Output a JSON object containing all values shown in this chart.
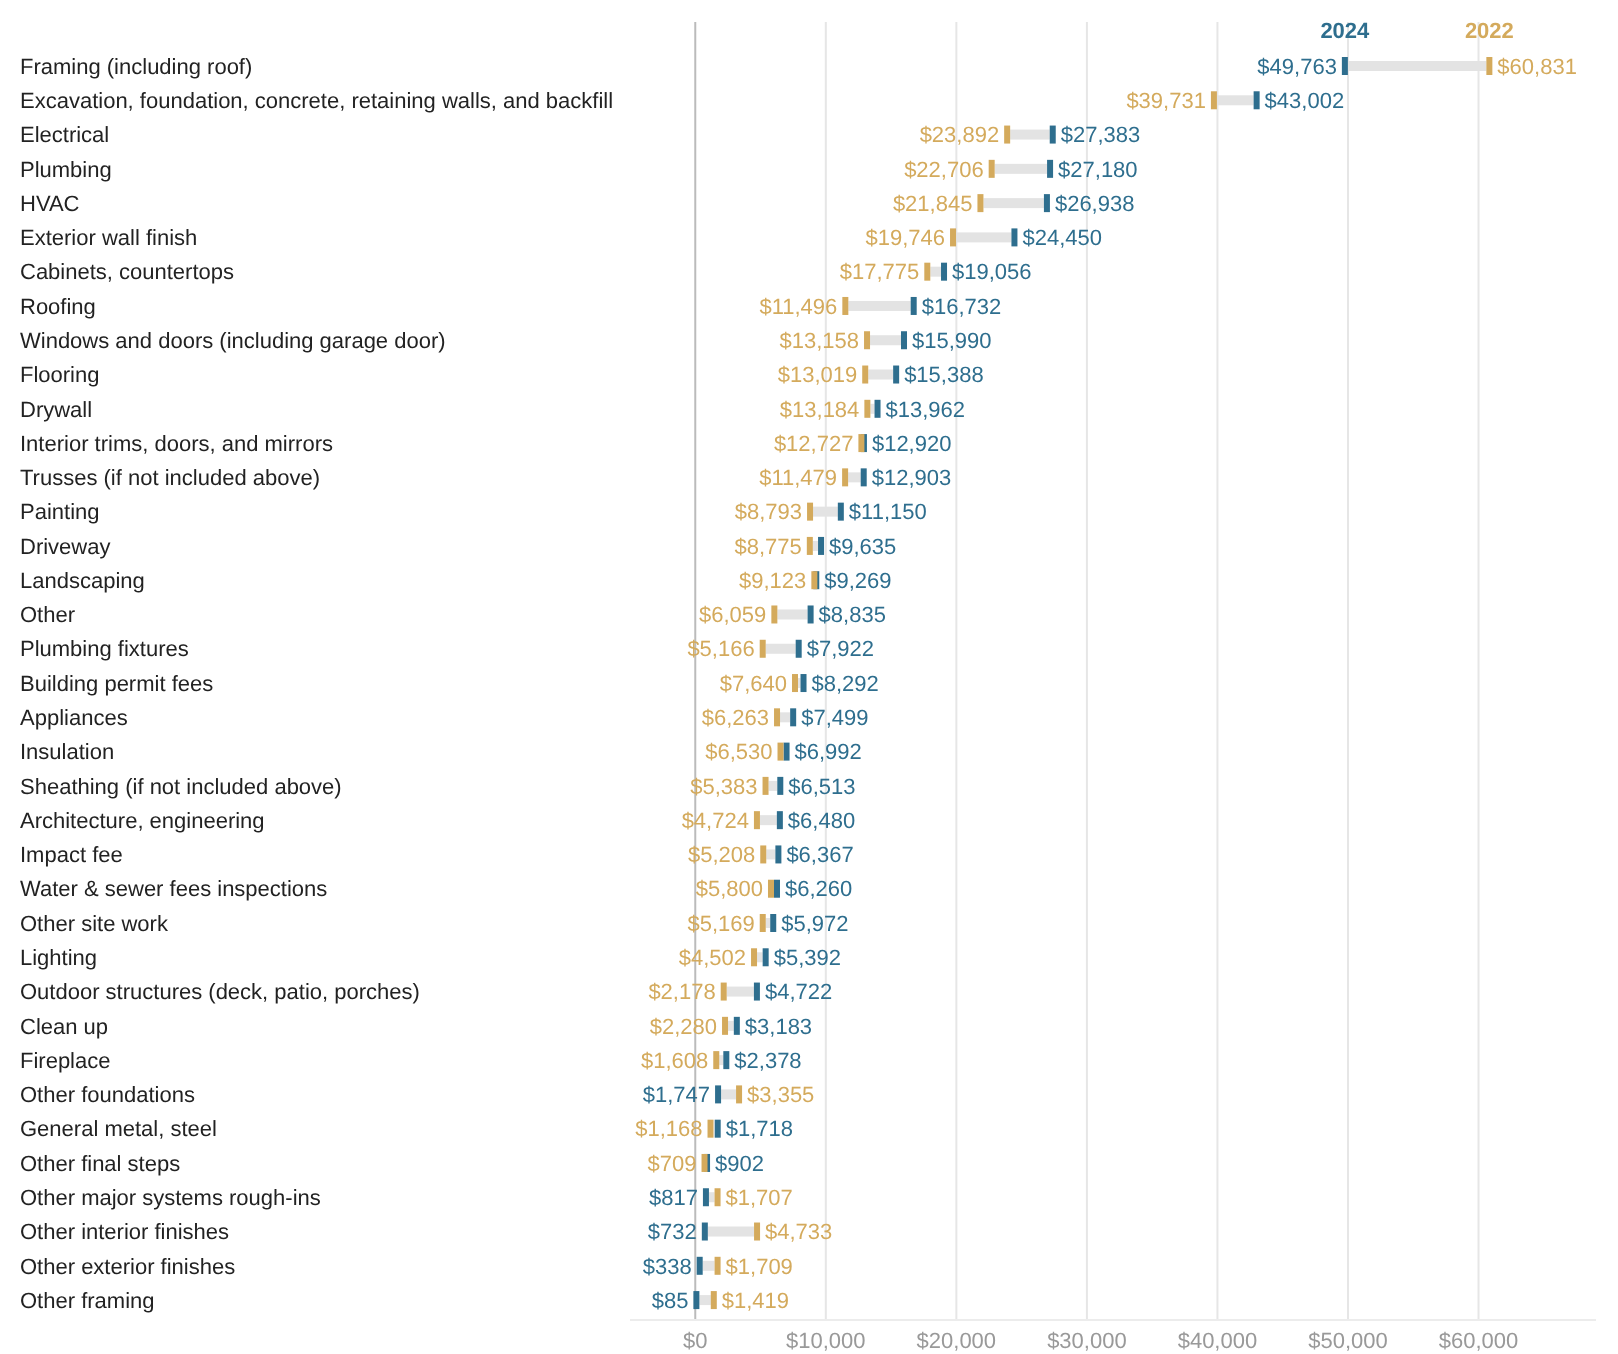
{
  "chart_data": {
    "type": "scatter",
    "orientation": "horizontal",
    "legend": false,
    "grid": "x",
    "categories": [
      "Framing (including roof)",
      "Excavation, foundation, concrete, retaining walls, and backfill",
      "Electrical",
      "Plumbing",
      "HVAC",
      "Exterior wall finish",
      "Cabinets, countertops",
      "Roofing",
      "Windows and doors (including garage door)",
      "Flooring",
      "Drywall",
      "Interior trims, doors, and mirrors",
      "Trusses (if not included above)",
      "Painting",
      "Driveway",
      "Landscaping",
      "Other",
      "Plumbing fixtures",
      "Building permit fees",
      "Appliances",
      "Insulation",
      "Sheathing (if not included above)",
      "Architecture, engineering",
      "Impact fee",
      "Water & sewer fees inspections",
      "Other site work",
      "Lighting",
      "Outdoor structures (deck, patio, porches)",
      "Clean up",
      "Fireplace",
      "Other foundations",
      "General metal, steel",
      "Other final steps",
      "Other major systems rough-ins",
      "Other interior finishes",
      "Other exterior finishes",
      "Other framing"
    ],
    "xlim": [
      -5000,
      69000
    ],
    "xticks": [
      {
        "value": 0,
        "label": "$0"
      },
      {
        "value": 10000,
        "label": "$10,000"
      },
      {
        "value": 20000,
        "label": "$20,000"
      },
      {
        "value": 30000,
        "label": "$30,000"
      },
      {
        "value": 40000,
        "label": "$40,000"
      },
      {
        "value": 50000,
        "label": "$50,000"
      },
      {
        "value": 60000,
        "label": "$60,000"
      }
    ],
    "series": [
      {
        "name": "2024",
        "color": "#2e6e8e",
        "values": [
          49763,
          43002,
          27383,
          27180,
          26938,
          24450,
          19056,
          16732,
          15990,
          15388,
          13962,
          12920,
          12903,
          11150,
          9635,
          9269,
          8835,
          7922,
          8292,
          7499,
          6992,
          6513,
          6480,
          6367,
          6260,
          5972,
          5392,
          4722,
          3183,
          2378,
          1747,
          1718,
          902,
          817,
          732,
          338,
          85
        ],
        "value_labels": [
          "$49,763",
          "$43,002",
          "$27,383",
          "$27,180",
          "$26,938",
          "$24,450",
          "$19,056",
          "$16,732",
          "$15,990",
          "$15,388",
          "$13,962",
          "$12,920",
          "$12,903",
          "$11,150",
          "$9,635",
          "$9,269",
          "$8,835",
          "$7,922",
          "$8,292",
          "$7,499",
          "$6,992",
          "$6,513",
          "$6,480",
          "$6,367",
          "$6,260",
          "$5,972",
          "$5,392",
          "$4,722",
          "$3,183",
          "$2,378",
          "$1,747",
          "$1,718",
          "$902",
          "$817",
          "$732",
          "$338",
          "$85"
        ]
      },
      {
        "name": "2022",
        "color": "#d4aa5c",
        "values": [
          60831,
          39731,
          23892,
          22706,
          21845,
          19746,
          17775,
          11496,
          13158,
          13019,
          13184,
          12727,
          11479,
          8793,
          8775,
          9123,
          6059,
          5166,
          7640,
          6263,
          6530,
          5383,
          4724,
          5208,
          5800,
          5169,
          4502,
          2178,
          2280,
          1608,
          3355,
          1168,
          709,
          1707,
          4733,
          1709,
          1419
        ],
        "value_labels": [
          "$60,831",
          "$39,731",
          "$23,892",
          "$22,706",
          "$21,845",
          "$19,746",
          "$17,775",
          "$11,496",
          "$13,158",
          "$13,019",
          "$13,184",
          "$12,727",
          "$11,479",
          "$8,793",
          "$8,775",
          "$9,123",
          "$6,059",
          "$5,166",
          "$7,640",
          "$6,263",
          "$6,530",
          "$5,383",
          "$4,724",
          "$5,208",
          "$5,800",
          "$5,169",
          "$4,502",
          "$2,178",
          "$2,280",
          "$1,608",
          "$3,355",
          "$1,168",
          "$709",
          "$1,707",
          "$4,733",
          "$1,709",
          "$1,419"
        ]
      }
    ]
  }
}
